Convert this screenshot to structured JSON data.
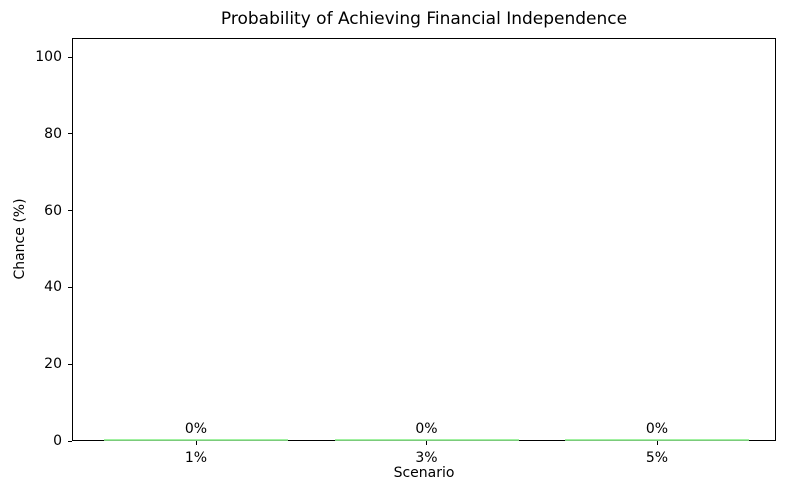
{
  "chart_data": {
    "type": "bar",
    "title": "Probability of Achieving Financial Independence",
    "categories": [
      "1%",
      "3%",
      "5%"
    ],
    "values": [
      0,
      0,
      0
    ],
    "bar_labels": [
      "0%",
      "0%",
      "0%"
    ],
    "xlabel": "Scenario",
    "ylabel": "Chance (%)",
    "ylim": [
      0,
      105
    ],
    "yticks": [
      0,
      20,
      40,
      60,
      80,
      100
    ],
    "grid": false,
    "legend": false,
    "bar_color": "#90EE90",
    "text_color": "#000000",
    "spine_color": "#000000",
    "background": "#ffffff"
  }
}
